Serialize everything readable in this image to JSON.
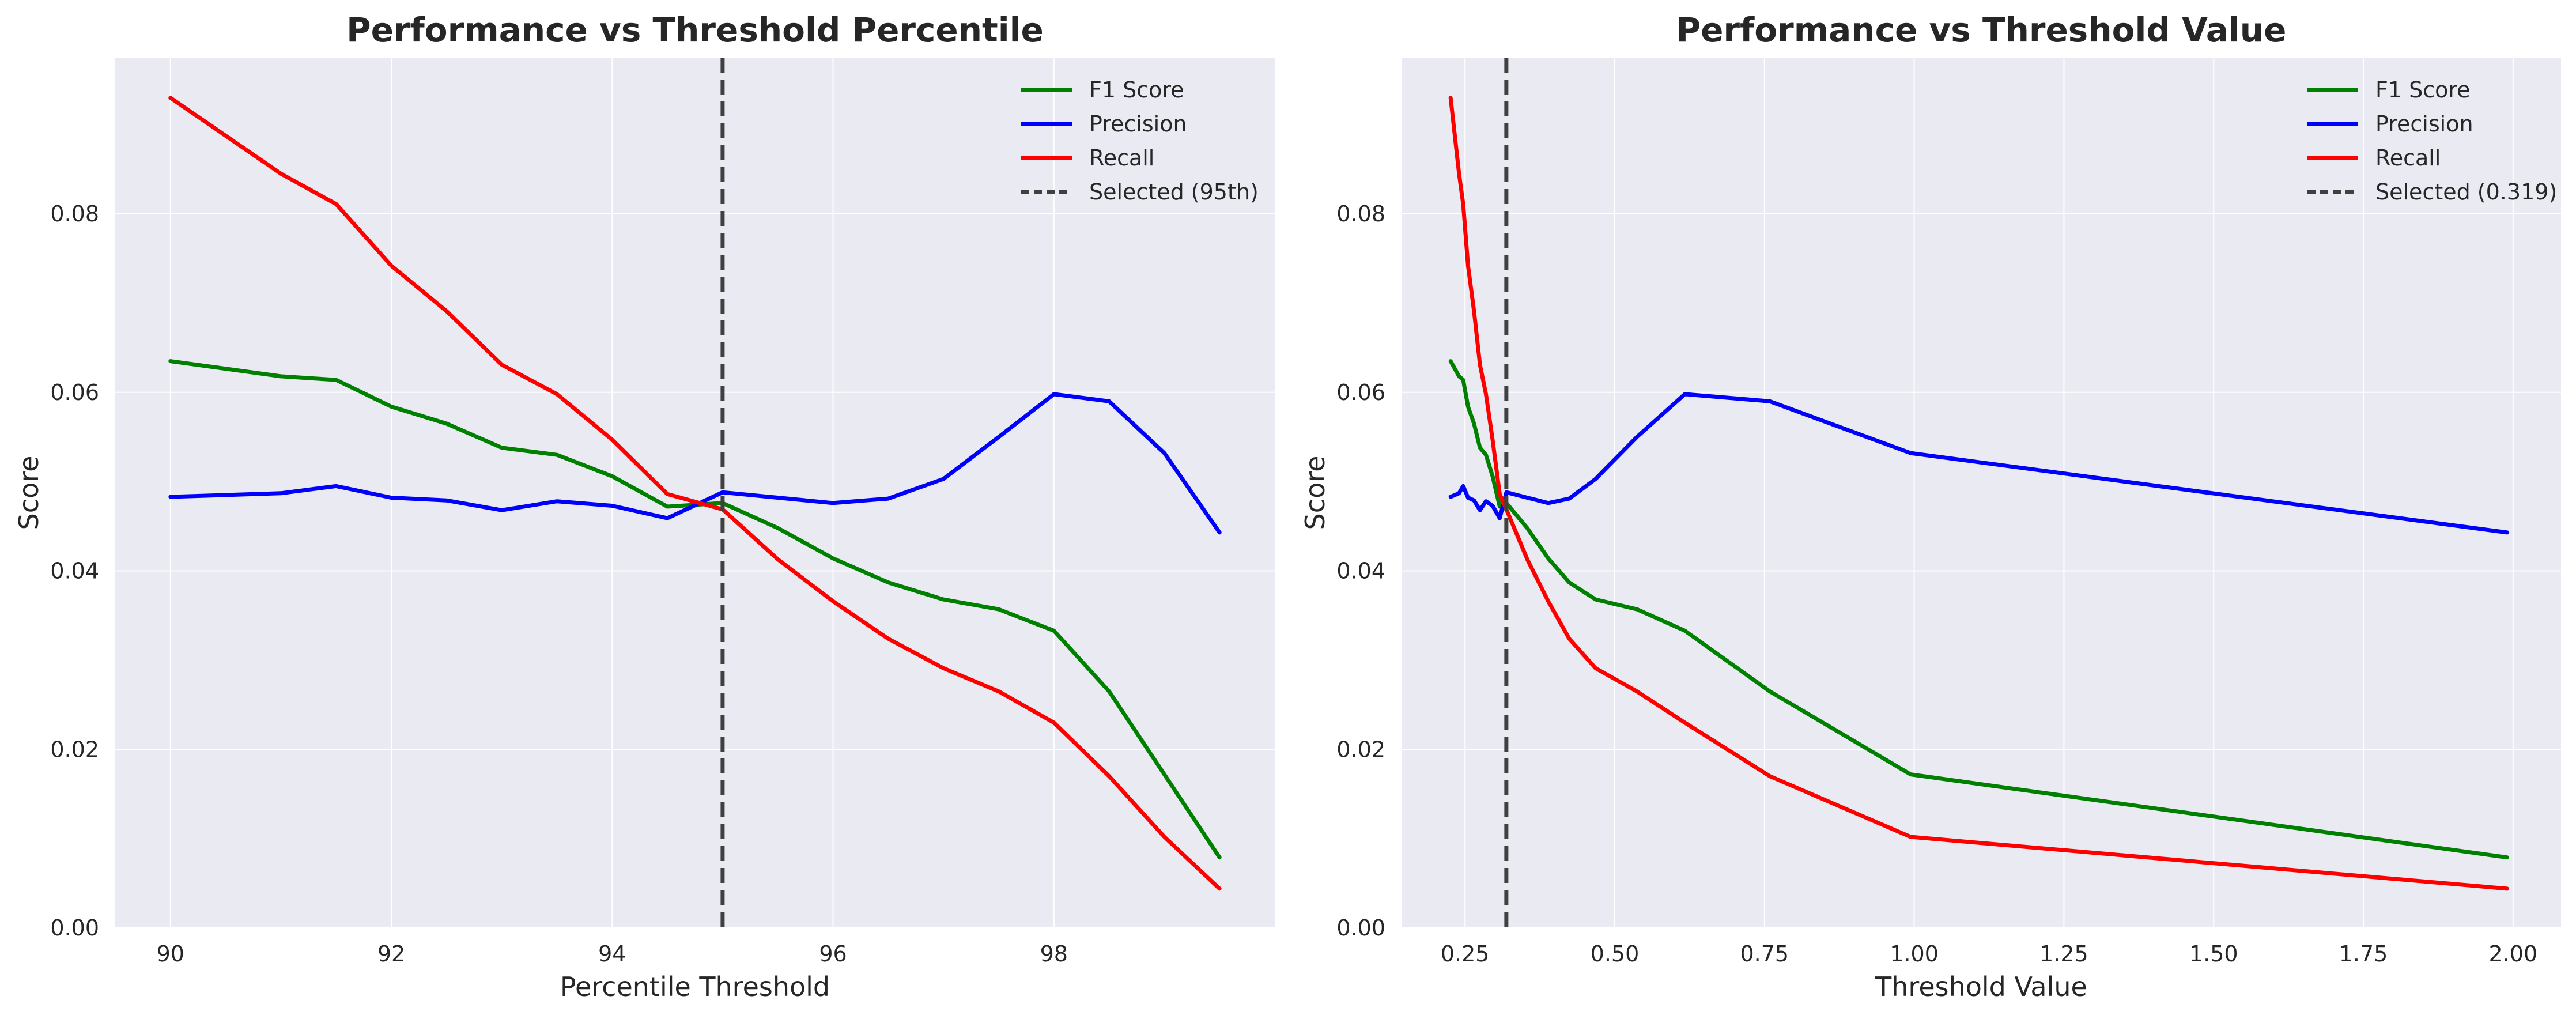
{
  "chart_data": [
    {
      "type": "line",
      "title": "Performance vs Threshold Percentile",
      "xlabel": "Percentile Threshold",
      "ylabel": "Score",
      "xlim": [
        89.5,
        100
      ],
      "ylim": [
        0,
        0.0975
      ],
      "xticks": [
        90,
        92,
        94,
        96,
        98
      ],
      "xtick_labels": [
        "90",
        "92",
        "94",
        "96",
        "98"
      ],
      "yticks": [
        0,
        0.02,
        0.04,
        0.06,
        0.08
      ],
      "ytick_labels": [
        "0.00",
        "0.02",
        "0.04",
        "0.06",
        "0.08"
      ],
      "grid": true,
      "legend_position": "top-right",
      "x": [
        90,
        91,
        91.5,
        92,
        92.5,
        93,
        93.5,
        94,
        94.5,
        95,
        95.5,
        96,
        96.5,
        97,
        97.5,
        98,
        98.5,
        99,
        99.5
      ],
      "series": [
        {
          "name": "F1 Score",
          "color": "#008000",
          "values": [
            0.0635,
            0.0618,
            0.0614,
            0.0584,
            0.0565,
            0.0538,
            0.053,
            0.0506,
            0.0472,
            0.0476,
            0.0448,
            0.0414,
            0.0387,
            0.0368,
            0.0357,
            0.0333,
            0.0265,
            0.0172,
            0.0079
          ]
        },
        {
          "name": "Precision",
          "color": "#0000ff",
          "values": [
            0.0483,
            0.0487,
            0.0495,
            0.0482,
            0.0479,
            0.0468,
            0.0478,
            0.0473,
            0.0459,
            0.0488,
            0.0482,
            0.0476,
            0.0481,
            0.0503,
            0.055,
            0.0598,
            0.059,
            0.0532,
            0.0443
          ]
        },
        {
          "name": "Recall",
          "color": "#ff0000",
          "values": [
            0.093,
            0.0845,
            0.0811,
            0.0742,
            0.0691,
            0.0631,
            0.0598,
            0.0547,
            0.0486,
            0.0469,
            0.0413,
            0.0366,
            0.0324,
            0.0291,
            0.0265,
            0.023,
            0.017,
            0.0102,
            0.0044
          ]
        }
      ],
      "reference_line": {
        "name": "Selected (95th)",
        "x": 95,
        "color": "#404040",
        "style": "dashed"
      }
    },
    {
      "type": "line",
      "title": "Performance vs Threshold Value",
      "xlabel": "Threshold Value",
      "ylabel": "Score",
      "xlim": [
        0.144,
        2.08
      ],
      "ylim": [
        0,
        0.0975
      ],
      "xticks": [
        0.25,
        0.5,
        0.75,
        1.0,
        1.25,
        1.5,
        1.75,
        2.0
      ],
      "xtick_labels": [
        "0.25",
        "0.50",
        "0.75",
        "1.00",
        "1.25",
        "1.50",
        "1.75",
        "2.00"
      ],
      "yticks": [
        0,
        0.02,
        0.04,
        0.06,
        0.08
      ],
      "ytick_labels": [
        "0.00",
        "0.02",
        "0.04",
        "0.06",
        "0.08"
      ],
      "grid": true,
      "legend_position": "top-right",
      "x": [
        0.226,
        0.24,
        0.247,
        0.255,
        0.265,
        0.275,
        0.285,
        0.296,
        0.308,
        0.319,
        0.354,
        0.389,
        0.424,
        0.468,
        0.537,
        0.617,
        0.759,
        0.994,
        1.99
      ],
      "series": [
        {
          "name": "F1 Score",
          "color": "#008000",
          "values": [
            0.0635,
            0.0618,
            0.0614,
            0.0584,
            0.0565,
            0.0538,
            0.053,
            0.0506,
            0.0472,
            0.0476,
            0.0448,
            0.0414,
            0.0387,
            0.0368,
            0.0357,
            0.0333,
            0.0265,
            0.0172,
            0.0079
          ]
        },
        {
          "name": "Precision",
          "color": "#0000ff",
          "values": [
            0.0483,
            0.0487,
            0.0495,
            0.0482,
            0.0479,
            0.0468,
            0.0478,
            0.0473,
            0.0459,
            0.0488,
            0.0482,
            0.0476,
            0.0481,
            0.0503,
            0.055,
            0.0598,
            0.059,
            0.0532,
            0.0443
          ]
        },
        {
          "name": "Recall",
          "color": "#ff0000",
          "values": [
            0.093,
            0.0845,
            0.0811,
            0.0742,
            0.0691,
            0.0631,
            0.0598,
            0.0547,
            0.0486,
            0.0469,
            0.0413,
            0.0366,
            0.0324,
            0.0291,
            0.0265,
            0.023,
            0.017,
            0.0102,
            0.0044
          ]
        }
      ],
      "reference_line": {
        "name": "Selected (0.319)",
        "x": 0.319,
        "color": "#404040",
        "style": "dashed"
      }
    }
  ]
}
